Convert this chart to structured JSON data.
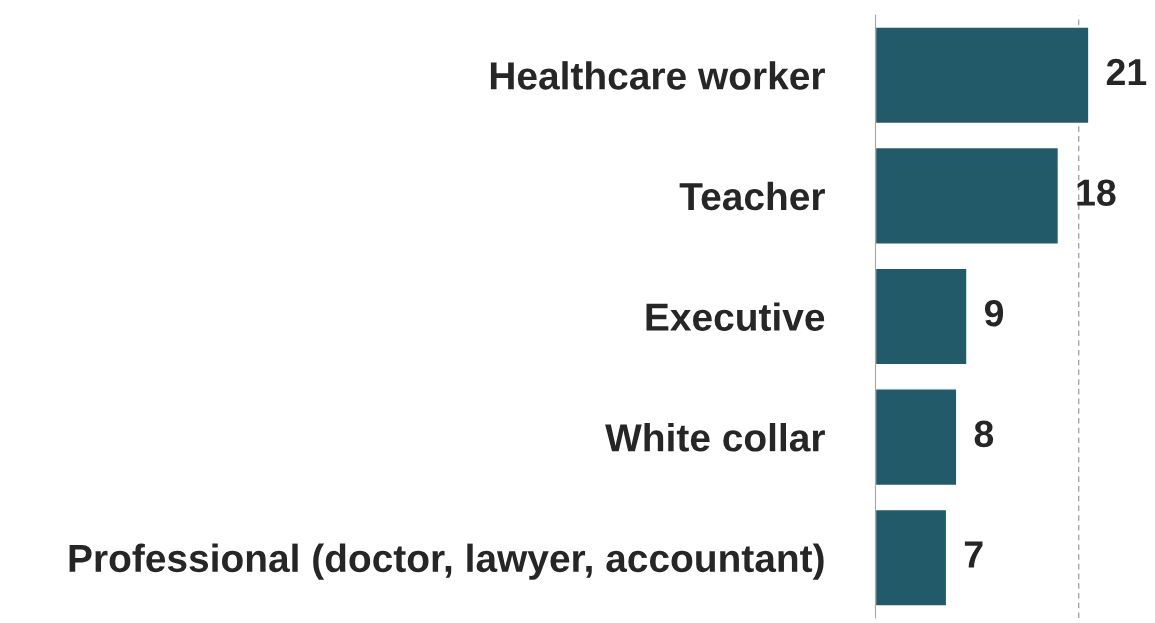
{
  "chart_data": {
    "type": "bar",
    "orientation": "horizontal",
    "categories": [
      "Healthcare worker",
      "Teacher",
      "Executive",
      "White collar",
      "Professional (doctor, lawyer, accountant)"
    ],
    "values": [
      21,
      18,
      9,
      8,
      7
    ],
    "color": "#225a6a",
    "data_labels": true,
    "tick_labels": "y",
    "grid": false,
    "ref_lines": [
      {
        "axis": "x",
        "value": 20,
        "color": "#a6a6a6",
        "line_style": "dashed"
      }
    ]
  }
}
